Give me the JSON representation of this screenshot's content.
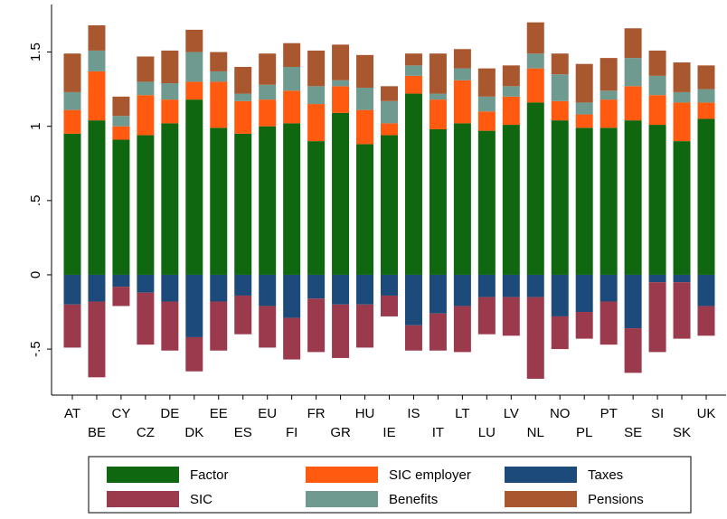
{
  "chart_data": {
    "type": "stacked-bar",
    "categories": [
      "AT",
      "BE",
      "CY",
      "CZ",
      "DE",
      "DK",
      "EE",
      "ES",
      "EU",
      "FI",
      "FR",
      "GR",
      "HU",
      "IE",
      "IS",
      "IT",
      "LT",
      "LU",
      "LV",
      "NL",
      "NO",
      "PL",
      "PT",
      "SE",
      "SI",
      "SK",
      "UK"
    ],
    "series": [
      {
        "name": "Factor",
        "color": "#0f670f",
        "values": [
          0.95,
          1.04,
          0.91,
          0.94,
          1.02,
          1.18,
          0.99,
          0.95,
          1.0,
          1.02,
          0.9,
          1.09,
          0.88,
          0.94,
          1.22,
          0.98,
          1.02,
          0.97,
          1.01,
          1.16,
          1.04,
          0.99,
          0.99,
          1.04,
          1.01,
          0.9,
          1.05
        ]
      },
      {
        "name": "SIC employer",
        "color": "#ff5a10",
        "values": [
          0.16,
          0.33,
          0.09,
          0.27,
          0.16,
          0.12,
          0.31,
          0.22,
          0.18,
          0.22,
          0.25,
          0.18,
          0.23,
          0.08,
          0.12,
          0.2,
          0.29,
          0.13,
          0.19,
          0.23,
          0.13,
          0.09,
          0.19,
          0.23,
          0.2,
          0.26,
          0.11
        ]
      },
      {
        "name": "Taxes",
        "color": "#1c4a7a",
        "values": [
          -0.2,
          -0.18,
          -0.08,
          -0.12,
          -0.18,
          -0.42,
          -0.18,
          -0.14,
          -0.21,
          -0.29,
          -0.16,
          -0.2,
          -0.2,
          -0.14,
          -0.34,
          -0.26,
          -0.21,
          -0.15,
          -0.15,
          -0.15,
          -0.28,
          -0.25,
          -0.18,
          -0.36,
          -0.05,
          -0.05,
          -0.21
        ]
      },
      {
        "name": "SIC",
        "color": "#9b3a4c",
        "values": [
          -0.29,
          -0.51,
          -0.13,
          -0.35,
          -0.33,
          -0.23,
          -0.33,
          -0.26,
          -0.28,
          -0.28,
          -0.36,
          -0.36,
          -0.29,
          -0.14,
          -0.17,
          -0.25,
          -0.31,
          -0.25,
          -0.26,
          -0.55,
          -0.22,
          -0.18,
          -0.29,
          -0.3,
          -0.47,
          -0.38,
          -0.2
        ]
      },
      {
        "name": "Benefits",
        "color": "#6e9a8f",
        "values": [
          0.12,
          0.14,
          0.07,
          0.09,
          0.11,
          0.2,
          0.07,
          0.05,
          0.1,
          0.16,
          0.12,
          0.04,
          0.15,
          0.15,
          0.07,
          0.04,
          0.08,
          0.1,
          0.07,
          0.1,
          0.18,
          0.08,
          0.06,
          0.19,
          0.13,
          0.07,
          0.09
        ]
      },
      {
        "name": "Pensions",
        "color": "#a9572f",
        "values": [
          0.26,
          0.17,
          0.13,
          0.17,
          0.22,
          0.15,
          0.13,
          0.18,
          0.21,
          0.16,
          0.24,
          0.24,
          0.22,
          0.1,
          0.08,
          0.27,
          0.13,
          0.19,
          0.14,
          0.21,
          0.14,
          0.26,
          0.22,
          0.2,
          0.17,
          0.2,
          0.16
        ]
      }
    ],
    "ylim": [
      -0.81,
      1.82
    ],
    "yticks": [
      {
        "value": -0.5,
        "label": "-.5"
      },
      0,
      {
        "value": 0.5,
        "label": ".5"
      },
      1,
      1.5
    ]
  }
}
